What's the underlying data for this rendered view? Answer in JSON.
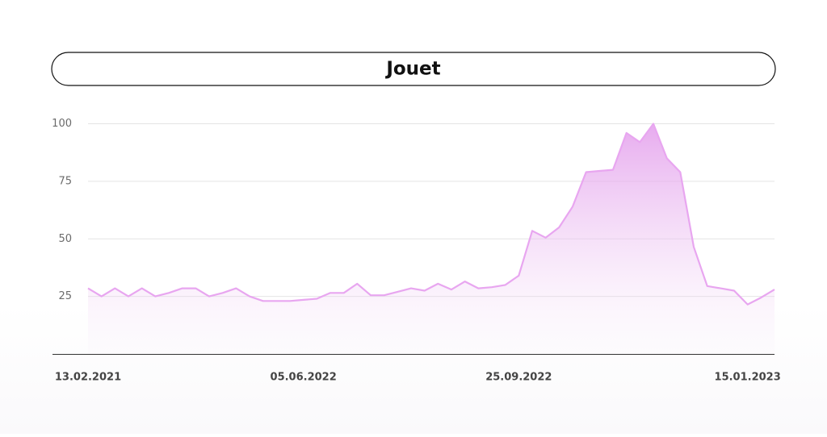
{
  "chart_data": {
    "type": "area",
    "title": "Jouet",
    "categories": [
      "13.02.2021",
      null,
      null,
      null,
      null,
      null,
      null,
      null,
      null,
      null,
      null,
      null,
      null,
      null,
      null,
      null,
      "05.06.2022",
      null,
      null,
      null,
      null,
      null,
      null,
      null,
      null,
      null,
      null,
      null,
      null,
      null,
      null,
      null,
      "25.09.2022",
      null,
      null,
      null,
      null,
      null,
      null,
      null,
      null,
      null,
      null,
      null,
      null,
      null,
      null,
      null,
      null,
      "15.01.2023",
      null,
      null
    ],
    "values": [
      28.5,
      25,
      28.5,
      25,
      28.5,
      25,
      26.5,
      28.5,
      28.5,
      25,
      26.5,
      28.5,
      25,
      23,
      23,
      23,
      23.5,
      24,
      26.5,
      26.5,
      30.5,
      25.5,
      25.5,
      27,
      28.5,
      27.5,
      30.5,
      28,
      31.5,
      28.5,
      29,
      30,
      34,
      53.5,
      50.5,
      55,
      64,
      79,
      79.5,
      80,
      96,
      92,
      100,
      85,
      79,
      46.5,
      29.5,
      28.5,
      27.5,
      21.5,
      24.5,
      28
    ],
    "color": "#e8a6f0",
    "ylim": [
      0,
      100
    ],
    "yticks": [
      25,
      50,
      75,
      100
    ],
    "grid": true
  }
}
